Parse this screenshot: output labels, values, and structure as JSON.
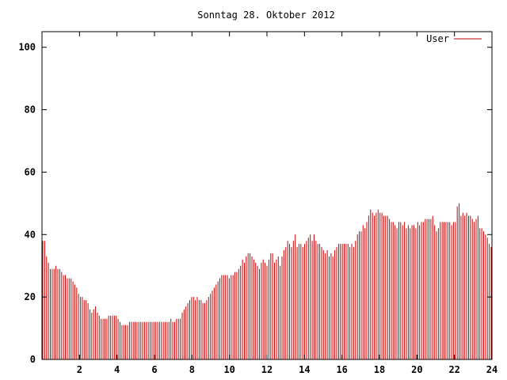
{
  "chart_data": {
    "type": "bar",
    "title": "Sonntag 28. Oktober 2012",
    "xlabel": "",
    "ylabel": "",
    "xlim": [
      0,
      24
    ],
    "ylim": [
      0,
      105
    ],
    "xticks": [
      2,
      4,
      6,
      8,
      10,
      12,
      14,
      16,
      18,
      20,
      22,
      24
    ],
    "yticks": [
      0,
      20,
      40,
      60,
      80,
      100
    ],
    "grid": false,
    "legend": "top-right",
    "colors": {
      "series": "#cc0000",
      "axes": "#000000",
      "background": "#ffffff"
    },
    "series": [
      {
        "name": "User",
        "x_start": 0,
        "x_step": 0.0833,
        "values": [
          38,
          38,
          33,
          31,
          29,
          29,
          29,
          30,
          29,
          29,
          28,
          27,
          27,
          26,
          26,
          26,
          25,
          24,
          23,
          21,
          20,
          20,
          19,
          19,
          18,
          16,
          15,
          16,
          17,
          15,
          14,
          13,
          13,
          13,
          13,
          14,
          14,
          14,
          14,
          14,
          13,
          12,
          11,
          11,
          11,
          11,
          12,
          12,
          12,
          12,
          12,
          12,
          12,
          12,
          12,
          12,
          12,
          12,
          12,
          12,
          12,
          12,
          12,
          12,
          12,
          12,
          12,
          12,
          13,
          12,
          12,
          13,
          13,
          13,
          15,
          16,
          17,
          18,
          19,
          20,
          20,
          19,
          20,
          19,
          19,
          18,
          18,
          19,
          20,
          21,
          22,
          23,
          24,
          25,
          26,
          27,
          27,
          27,
          27,
          26,
          27,
          27,
          28,
          28,
          29,
          30,
          32,
          31,
          33,
          34,
          34,
          33,
          32,
          31,
          30,
          29,
          31,
          32,
          31,
          30,
          32,
          34,
          34,
          31,
          32,
          33,
          30,
          33,
          35,
          36,
          38,
          37,
          36,
          38,
          40,
          36,
          37,
          37,
          36,
          37,
          38,
          39,
          40,
          38,
          40,
          38,
          37,
          37,
          36,
          35,
          34,
          35,
          33,
          34,
          33,
          35,
          36,
          37,
          37,
          37,
          37,
          37,
          37,
          36,
          37,
          36,
          38,
          40,
          41,
          41,
          43,
          42,
          44,
          46,
          48,
          47,
          46,
          47,
          48,
          47,
          47,
          46,
          46,
          46,
          45,
          44,
          44,
          43,
          42,
          44,
          44,
          43,
          44,
          42,
          43,
          42,
          43,
          43,
          42,
          44,
          43,
          44,
          44,
          45,
          45,
          45,
          45,
          46,
          43,
          41,
          42,
          44,
          44,
          44,
          44,
          44,
          44,
          43,
          44,
          44,
          49,
          50,
          46,
          47,
          46,
          47,
          46,
          46,
          45,
          44,
          45,
          46,
          42,
          42,
          41,
          40,
          39,
          37,
          36
        ]
      }
    ]
  }
}
